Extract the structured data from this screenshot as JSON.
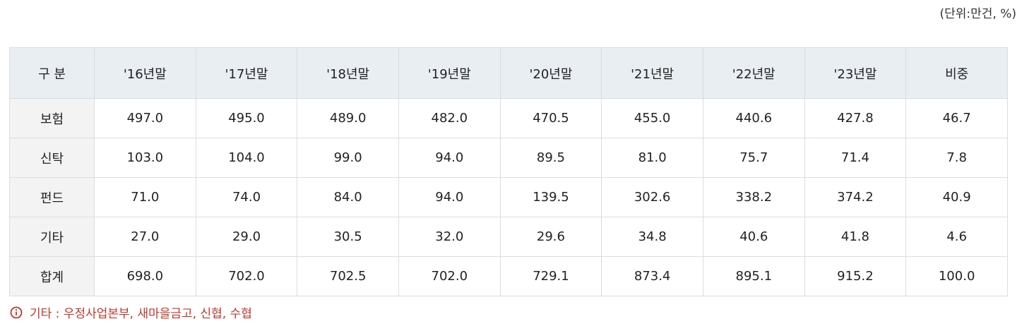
{
  "unit_label": "(단위:만건, %)",
  "table": {
    "headers": [
      "구 분",
      "'16년말",
      "'17년말",
      "'18년말",
      "'19년말",
      "'20년말",
      "'21년말",
      "'22년말",
      "'23년말",
      "비중"
    ],
    "rows": [
      {
        "label": "보험",
        "values": [
          "497.0",
          "495.0",
          "489.0",
          "482.0",
          "470.5",
          "455.0",
          "440.6",
          "427.8",
          "46.7"
        ]
      },
      {
        "label": "신탁",
        "values": [
          "103.0",
          "104.0",
          "99.0",
          "94.0",
          "89.5",
          "81.0",
          "75.7",
          "71.4",
          "7.8"
        ]
      },
      {
        "label": "펀드",
        "values": [
          "71.0",
          "74.0",
          "84.0",
          "94.0",
          "139.5",
          "302.6",
          "338.2",
          "374.2",
          "40.9"
        ]
      },
      {
        "label": "기타",
        "values": [
          "27.0",
          "29.0",
          "30.5",
          "32.0",
          "29.6",
          "34.8",
          "40.6",
          "41.8",
          "4.6"
        ]
      },
      {
        "label": "합계",
        "values": [
          "698.0",
          "702.0",
          "702.5",
          "702.0",
          "729.1",
          "873.4",
          "895.1",
          "915.2",
          "100.0"
        ]
      }
    ]
  },
  "note": {
    "icon": "info-circle-icon",
    "text": "기타 : 우정사업본부, 새마을금고, 신협, 수협",
    "color": "#c0392b"
  }
}
